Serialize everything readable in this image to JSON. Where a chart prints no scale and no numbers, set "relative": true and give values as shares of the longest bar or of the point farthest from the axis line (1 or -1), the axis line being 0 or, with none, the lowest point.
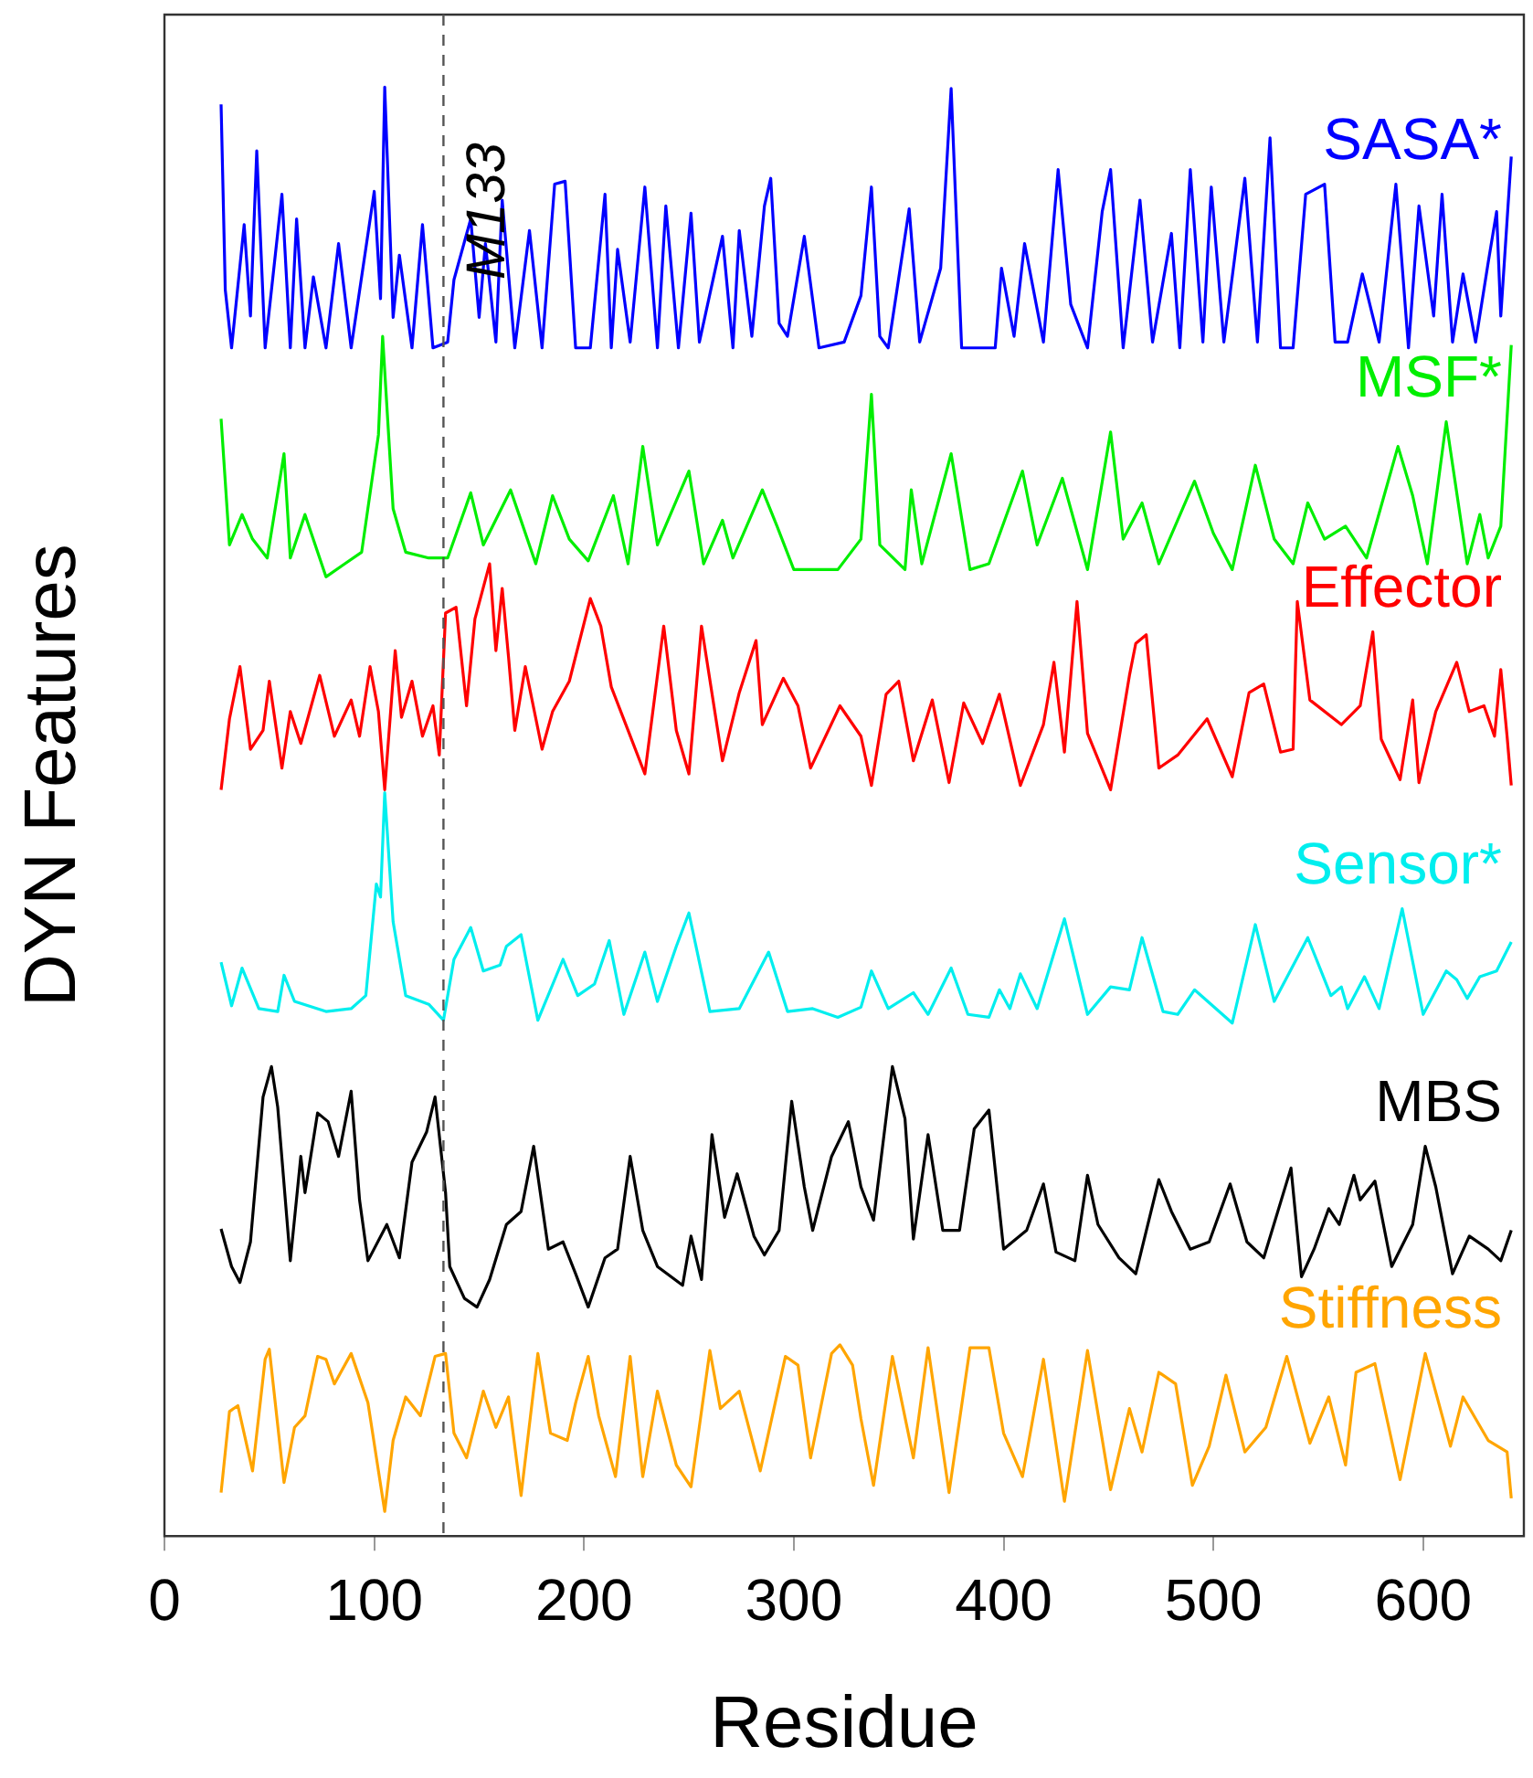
{
  "chart_data": {
    "type": "line",
    "xlabel": "Residue",
    "ylabel": "DYN Features",
    "relative": true,
    "tick_labels": "x",
    "xlim": [
      0,
      648
    ],
    "xticks": [
      0,
      100,
      200,
      300,
      400,
      500,
      600
    ],
    "ref_lines": [
      {
        "axis": "x",
        "value": 133,
        "label": "M133",
        "line_style": "dashed",
        "color": "#555555"
      }
    ],
    "series": [
      {
        "name": "SASA*",
        "color": "#0000ff",
        "x": [
          27,
          29,
          32,
          38,
          41,
          44,
          48,
          56,
          60,
          63,
          67,
          71,
          77,
          83,
          89,
          100,
          103,
          105,
          109,
          112,
          118,
          123,
          128,
          135,
          138,
          146,
          150,
          153,
          158,
          161,
          167,
          174,
          180,
          186,
          191,
          196,
          203,
          210,
          213,
          216,
          222,
          229,
          235,
          239,
          245,
          251,
          255,
          266,
          271,
          274,
          280,
          286,
          289,
          293,
          297,
          305,
          312,
          324,
          332,
          337,
          341,
          345,
          355,
          360,
          370,
          375,
          380,
          396,
          399,
          405,
          410,
          419,
          426,
          432,
          440,
          447,
          451,
          457,
          465,
          471,
          480,
          484,
          489,
          495,
          499,
          505,
          515,
          521,
          527,
          532,
          538,
          544,
          553,
          558,
          564,
          571,
          579,
          587,
          593,
          598,
          605,
          609,
          614,
          619,
          625,
          631,
          635,
          637,
          642
        ],
        "values": [
          0.988,
          0.86,
          0.82,
          0.905,
          0.842,
          0.956,
          0.82,
          0.926,
          0.82,
          0.909,
          0.82,
          0.869,
          0.82,
          0.892,
          0.82,
          0.928,
          0.854,
          1,
          0.841,
          0.884,
          0.82,
          0.905,
          0.82,
          0.824,
          0.867,
          0.909,
          0.841,
          0.892,
          0.824,
          0.922,
          0.82,
          0.901,
          0.82,
          0.933,
          0.935,
          0.82,
          0.82,
          0.926,
          0.82,
          0.888,
          0.824,
          0.931,
          0.82,
          0.918,
          0.82,
          0.913,
          0.824,
          0.897,
          0.82,
          0.901,
          0.828,
          0.918,
          0.937,
          0.837,
          0.828,
          0.897,
          0.82,
          0.824,
          0.856,
          0.931,
          0.828,
          0.82,
          0.916,
          0.824,
          0.875,
          0.999,
          0.82,
          0.82,
          0.875,
          0.828,
          0.892,
          0.824,
          0.943,
          0.85,
          0.82,
          0.914,
          0.943,
          0.82,
          0.922,
          0.824,
          0.899,
          0.82,
          0.943,
          0.824,
          0.931,
          0.824,
          0.937,
          0.824,
          0.965,
          0.82,
          0.82,
          0.926,
          0.933,
          0.824,
          0.824,
          0.871,
          0.824,
          0.933,
          0.82,
          0.918,
          0.842,
          0.926,
          0.824,
          0.871,
          0.824,
          0.879,
          0.914,
          0.842,
          0.952
        ]
      },
      {
        "name": "MSF*",
        "color": "#00ee00",
        "x": [
          27,
          31,
          37,
          42,
          49,
          57,
          60,
          67,
          77,
          86,
          94,
          102,
          104,
          109,
          115,
          126,
          135,
          146,
          152,
          165,
          169,
          177,
          185,
          193,
          202,
          214,
          221,
          228,
          235,
          250,
          257,
          266,
          271,
          285,
          292,
          300,
          321,
          332,
          337,
          341,
          353,
          356,
          361,
          375,
          384,
          393,
          409,
          416,
          428,
          440,
          451,
          457,
          466,
          474,
          491,
          500,
          509,
          520,
          529,
          538,
          545,
          553,
          563,
          573,
          588,
          595,
          602,
          611,
          621,
          627,
          631,
          637,
          642
        ],
        "values": [
          0.771,
          0.684,
          0.705,
          0.688,
          0.675,
          0.747,
          0.675,
          0.705,
          0.662,
          0.671,
          0.679,
          0.76,
          0.828,
          0.709,
          0.679,
          0.675,
          0.675,
          0.72,
          0.684,
          0.722,
          0.705,
          0.671,
          0.718,
          0.688,
          0.673,
          0.718,
          0.671,
          0.752,
          0.684,
          0.735,
          0.671,
          0.701,
          0.675,
          0.722,
          0.697,
          0.667,
          0.667,
          0.688,
          0.788,
          0.684,
          0.667,
          0.722,
          0.671,
          0.747,
          0.667,
          0.671,
          0.735,
          0.684,
          0.73,
          0.667,
          0.762,
          0.688,
          0.713,
          0.671,
          0.728,
          0.692,
          0.667,
          0.739,
          0.688,
          0.671,
          0.713,
          0.688,
          0.697,
          0.675,
          0.752,
          0.718,
          0.671,
          0.769,
          0.671,
          0.705,
          0.675,
          0.697,
          0.822
        ]
      },
      {
        "name": "Effector",
        "color": "#ff0000",
        "x": [
          27,
          31,
          36,
          41,
          47,
          50,
          56,
          60,
          65,
          74,
          81,
          89,
          93,
          98,
          102,
          105,
          110,
          113,
          118,
          123,
          128,
          131,
          134,
          139,
          144,
          148,
          155,
          158,
          161,
          164,
          167,
          172,
          180,
          185,
          193,
          203,
          208,
          213,
          221,
          229,
          238,
          244,
          250,
          256,
          266,
          274,
          282,
          285,
          295,
          302,
          308,
          322,
          332,
          337,
          344,
          350,
          357,
          366,
          374,
          381,
          390,
          398,
          408,
          419,
          424,
          429,
          435,
          440,
          451,
          460,
          463,
          468,
          474,
          483,
          497,
          509,
          517,
          524,
          532,
          538,
          540,
          546,
          561,
          570,
          576,
          580,
          589,
          595,
          598,
          606,
          616,
          622,
          629,
          634,
          637,
          640,
          642
        ],
        "values": [
          0.515,
          0.564,
          0.6,
          0.543,
          0.556,
          0.59,
          0.53,
          0.569,
          0.547,
          0.594,
          0.552,
          0.577,
          0.552,
          0.6,
          0.569,
          0.515,
          0.611,
          0.565,
          0.59,
          0.552,
          0.573,
          0.539,
          0.637,
          0.641,
          0.573,
          0.633,
          0.671,
          0.611,
          0.654,
          0.607,
          0.556,
          0.6,
          0.543,
          0.569,
          0.59,
          0.647,
          0.628,
          0.586,
          0.556,
          0.526,
          0.628,
          0.556,
          0.526,
          0.628,
          0.535,
          0.582,
          0.618,
          0.56,
          0.592,
          0.573,
          0.53,
          0.573,
          0.552,
          0.518,
          0.581,
          0.59,
          0.535,
          0.577,
          0.52,
          0.575,
          0.547,
          0.581,
          0.518,
          0.56,
          0.603,
          0.541,
          0.645,
          0.554,
          0.515,
          0.594,
          0.616,
          0.622,
          0.53,
          0.539,
          0.564,
          0.524,
          0.582,
          0.588,
          0.541,
          0.543,
          0.645,
          0.577,
          0.56,
          0.573,
          0.624,
          0.55,
          0.522,
          0.577,
          0.52,
          0.569,
          0.603,
          0.569,
          0.573,
          0.552,
          0.598,
          0.552,
          0.518
        ]
      },
      {
        "name": "Sensor*",
        "color": "#00eeee",
        "x": [
          27,
          32,
          37,
          45,
          54,
          57,
          62,
          77,
          89,
          96,
          101,
          103,
          105,
          109,
          115,
          126,
          133,
          138,
          146,
          152,
          160,
          163,
          170,
          178,
          190,
          197,
          205,
          212,
          219,
          229,
          235,
          244,
          250,
          260,
          274,
          288,
          297,
          309,
          321,
          332,
          337,
          345,
          357,
          364,
          375,
          383,
          393,
          398,
          403,
          408,
          416,
          429,
          440,
          451,
          460,
          466,
          476,
          483,
          491,
          509,
          520,
          529,
          545,
          556,
          561,
          564,
          572,
          579,
          590,
          600,
          611,
          616,
          621,
          627,
          635,
          642
        ],
        "values": [
          0.396,
          0.366,
          0.392,
          0.364,
          0.362,
          0.387,
          0.369,
          0.362,
          0.364,
          0.373,
          0.45,
          0.441,
          0.513,
          0.424,
          0.373,
          0.367,
          0.356,
          0.398,
          0.42,
          0.39,
          0.394,
          0.407,
          0.415,
          0.356,
          0.398,
          0.373,
          0.381,
          0.411,
          0.36,
          0.403,
          0.369,
          0.407,
          0.43,
          0.362,
          0.364,
          0.403,
          0.362,
          0.364,
          0.358,
          0.365,
          0.39,
          0.364,
          0.375,
          0.36,
          0.392,
          0.36,
          0.358,
          0.377,
          0.364,
          0.388,
          0.364,
          0.426,
          0.36,
          0.379,
          0.377,
          0.413,
          0.362,
          0.36,
          0.377,
          0.354,
          0.422,
          0.369,
          0.413,
          0.373,
          0.379,
          0.364,
          0.386,
          0.364,
          0.433,
          0.36,
          0.39,
          0.384,
          0.371,
          0.386,
          0.39,
          0.41
        ]
      },
      {
        "name": "MBS",
        "color": "#000000",
        "x": [
          27,
          32,
          36,
          41,
          47,
          51,
          54,
          60,
          65,
          67,
          73,
          78,
          83,
          89,
          93,
          97,
          106,
          112,
          118,
          125,
          129,
          134,
          136,
          143,
          149,
          155,
          163,
          170,
          176,
          183,
          190,
          196,
          202,
          210,
          216,
          222,
          228,
          235,
          247,
          251,
          256,
          261,
          267,
          273,
          281,
          286,
          293,
          299,
          305,
          309,
          318,
          326,
          332,
          338,
          347,
          353,
          357,
          364,
          371,
          379,
          386,
          393,
          400,
          411,
          419,
          425,
          434,
          440,
          445,
          455,
          463,
          474,
          480,
          489,
          498,
          508,
          516,
          524,
          537,
          542,
          548,
          555,
          560,
          567,
          570,
          577,
          585,
          595,
          601,
          606,
          614,
          622,
          631,
          637,
          642
        ],
        "values": [
          0.212,
          0.186,
          0.175,
          0.203,
          0.303,
          0.324,
          0.296,
          0.19,
          0.262,
          0.237,
          0.292,
          0.286,
          0.262,
          0.307,
          0.232,
          0.19,
          0.215,
          0.192,
          0.258,
          0.279,
          0.303,
          0.237,
          0.186,
          0.164,
          0.158,
          0.177,
          0.215,
          0.224,
          0.269,
          0.198,
          0.203,
          0.181,
          0.158,
          0.192,
          0.198,
          0.262,
          0.211,
          0.186,
          0.173,
          0.207,
          0.177,
          0.277,
          0.22,
          0.25,
          0.207,
          0.194,
          0.211,
          0.3,
          0.241,
          0.211,
          0.262,
          0.286,
          0.241,
          0.218,
          0.324,
          0.288,
          0.205,
          0.277,
          0.211,
          0.211,
          0.281,
          0.294,
          0.198,
          0.211,
          0.243,
          0.196,
          0.19,
          0.249,
          0.215,
          0.192,
          0.181,
          0.246,
          0.224,
          0.198,
          0.203,
          0.243,
          0.203,
          0.192,
          0.254,
          0.179,
          0.198,
          0.226,
          0.215,
          0.249,
          0.232,
          0.245,
          0.186,
          0.215,
          0.269,
          0.241,
          0.181,
          0.207,
          0.198,
          0.19,
          0.211
        ]
      },
      {
        "name": "Stiffness",
        "color": "#ffa500",
        "x": [
          27,
          31,
          35,
          42,
          48,
          50,
          57,
          62,
          67,
          73,
          77,
          81,
          89,
          97,
          102,
          105,
          109,
          115,
          122,
          129,
          134,
          138,
          144,
          152,
          158,
          164,
          170,
          178,
          184,
          192,
          196,
          202,
          207,
          215,
          222,
          228,
          235,
          244,
          251,
          260,
          265,
          274,
          284,
          296,
          302,
          308,
          318,
          322,
          328,
          332,
          338,
          347,
          357,
          364,
          374,
          384,
          393,
          400,
          409,
          419,
          429,
          440,
          451,
          460,
          466,
          474,
          482,
          490,
          498,
          506,
          515,
          525,
          535,
          546,
          555,
          563,
          568,
          577,
          589,
          601,
          613,
          619,
          631,
          640,
          642
        ],
        "values": [
          0.03,
          0.086,
          0.09,
          0.045,
          0.122,
          0.129,
          0.037,
          0.075,
          0.083,
          0.124,
          0.122,
          0.105,
          0.126,
          0.092,
          0.045,
          0.017,
          0.066,
          0.096,
          0.083,
          0.124,
          0.126,
          0.071,
          0.054,
          0.1,
          0.075,
          0.096,
          0.028,
          0.126,
          0.071,
          0.066,
          0.092,
          0.124,
          0.083,
          0.041,
          0.124,
          0.041,
          0.1,
          0.049,
          0.034,
          0.128,
          0.088,
          0.1,
          0.045,
          0.124,
          0.118,
          0.054,
          0.126,
          0.132,
          0.118,
          0.081,
          0.035,
          0.124,
          0.054,
          0.13,
          0.03,
          0.13,
          0.13,
          0.071,
          0.041,
          0.122,
          0.024,
          0.128,
          0.032,
          0.088,
          0.058,
          0.113,
          0.105,
          0.035,
          0.062,
          0.111,
          0.058,
          0.075,
          0.124,
          0.064,
          0.096,
          0.049,
          0.113,
          0.119,
          0.039,
          0.126,
          0.062,
          0.096,
          0.066,
          0.058,
          0.026
        ]
      }
    ]
  }
}
